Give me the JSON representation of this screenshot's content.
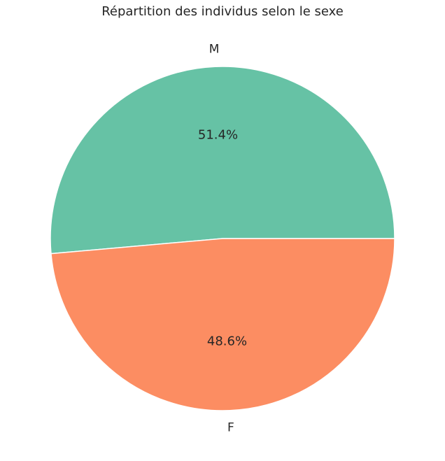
{
  "chart_data": {
    "type": "pie",
    "title": "Répartition des individus selon le sexe",
    "slices": [
      {
        "label": "M",
        "value": 51.4,
        "pct_label": "51.4%",
        "color": "#66c2a5"
      },
      {
        "label": "F",
        "value": 48.6,
        "pct_label": "48.6%",
        "color": "#fc8d62"
      }
    ],
    "start_angle_deg": 0,
    "direction": "counterclockwise"
  }
}
